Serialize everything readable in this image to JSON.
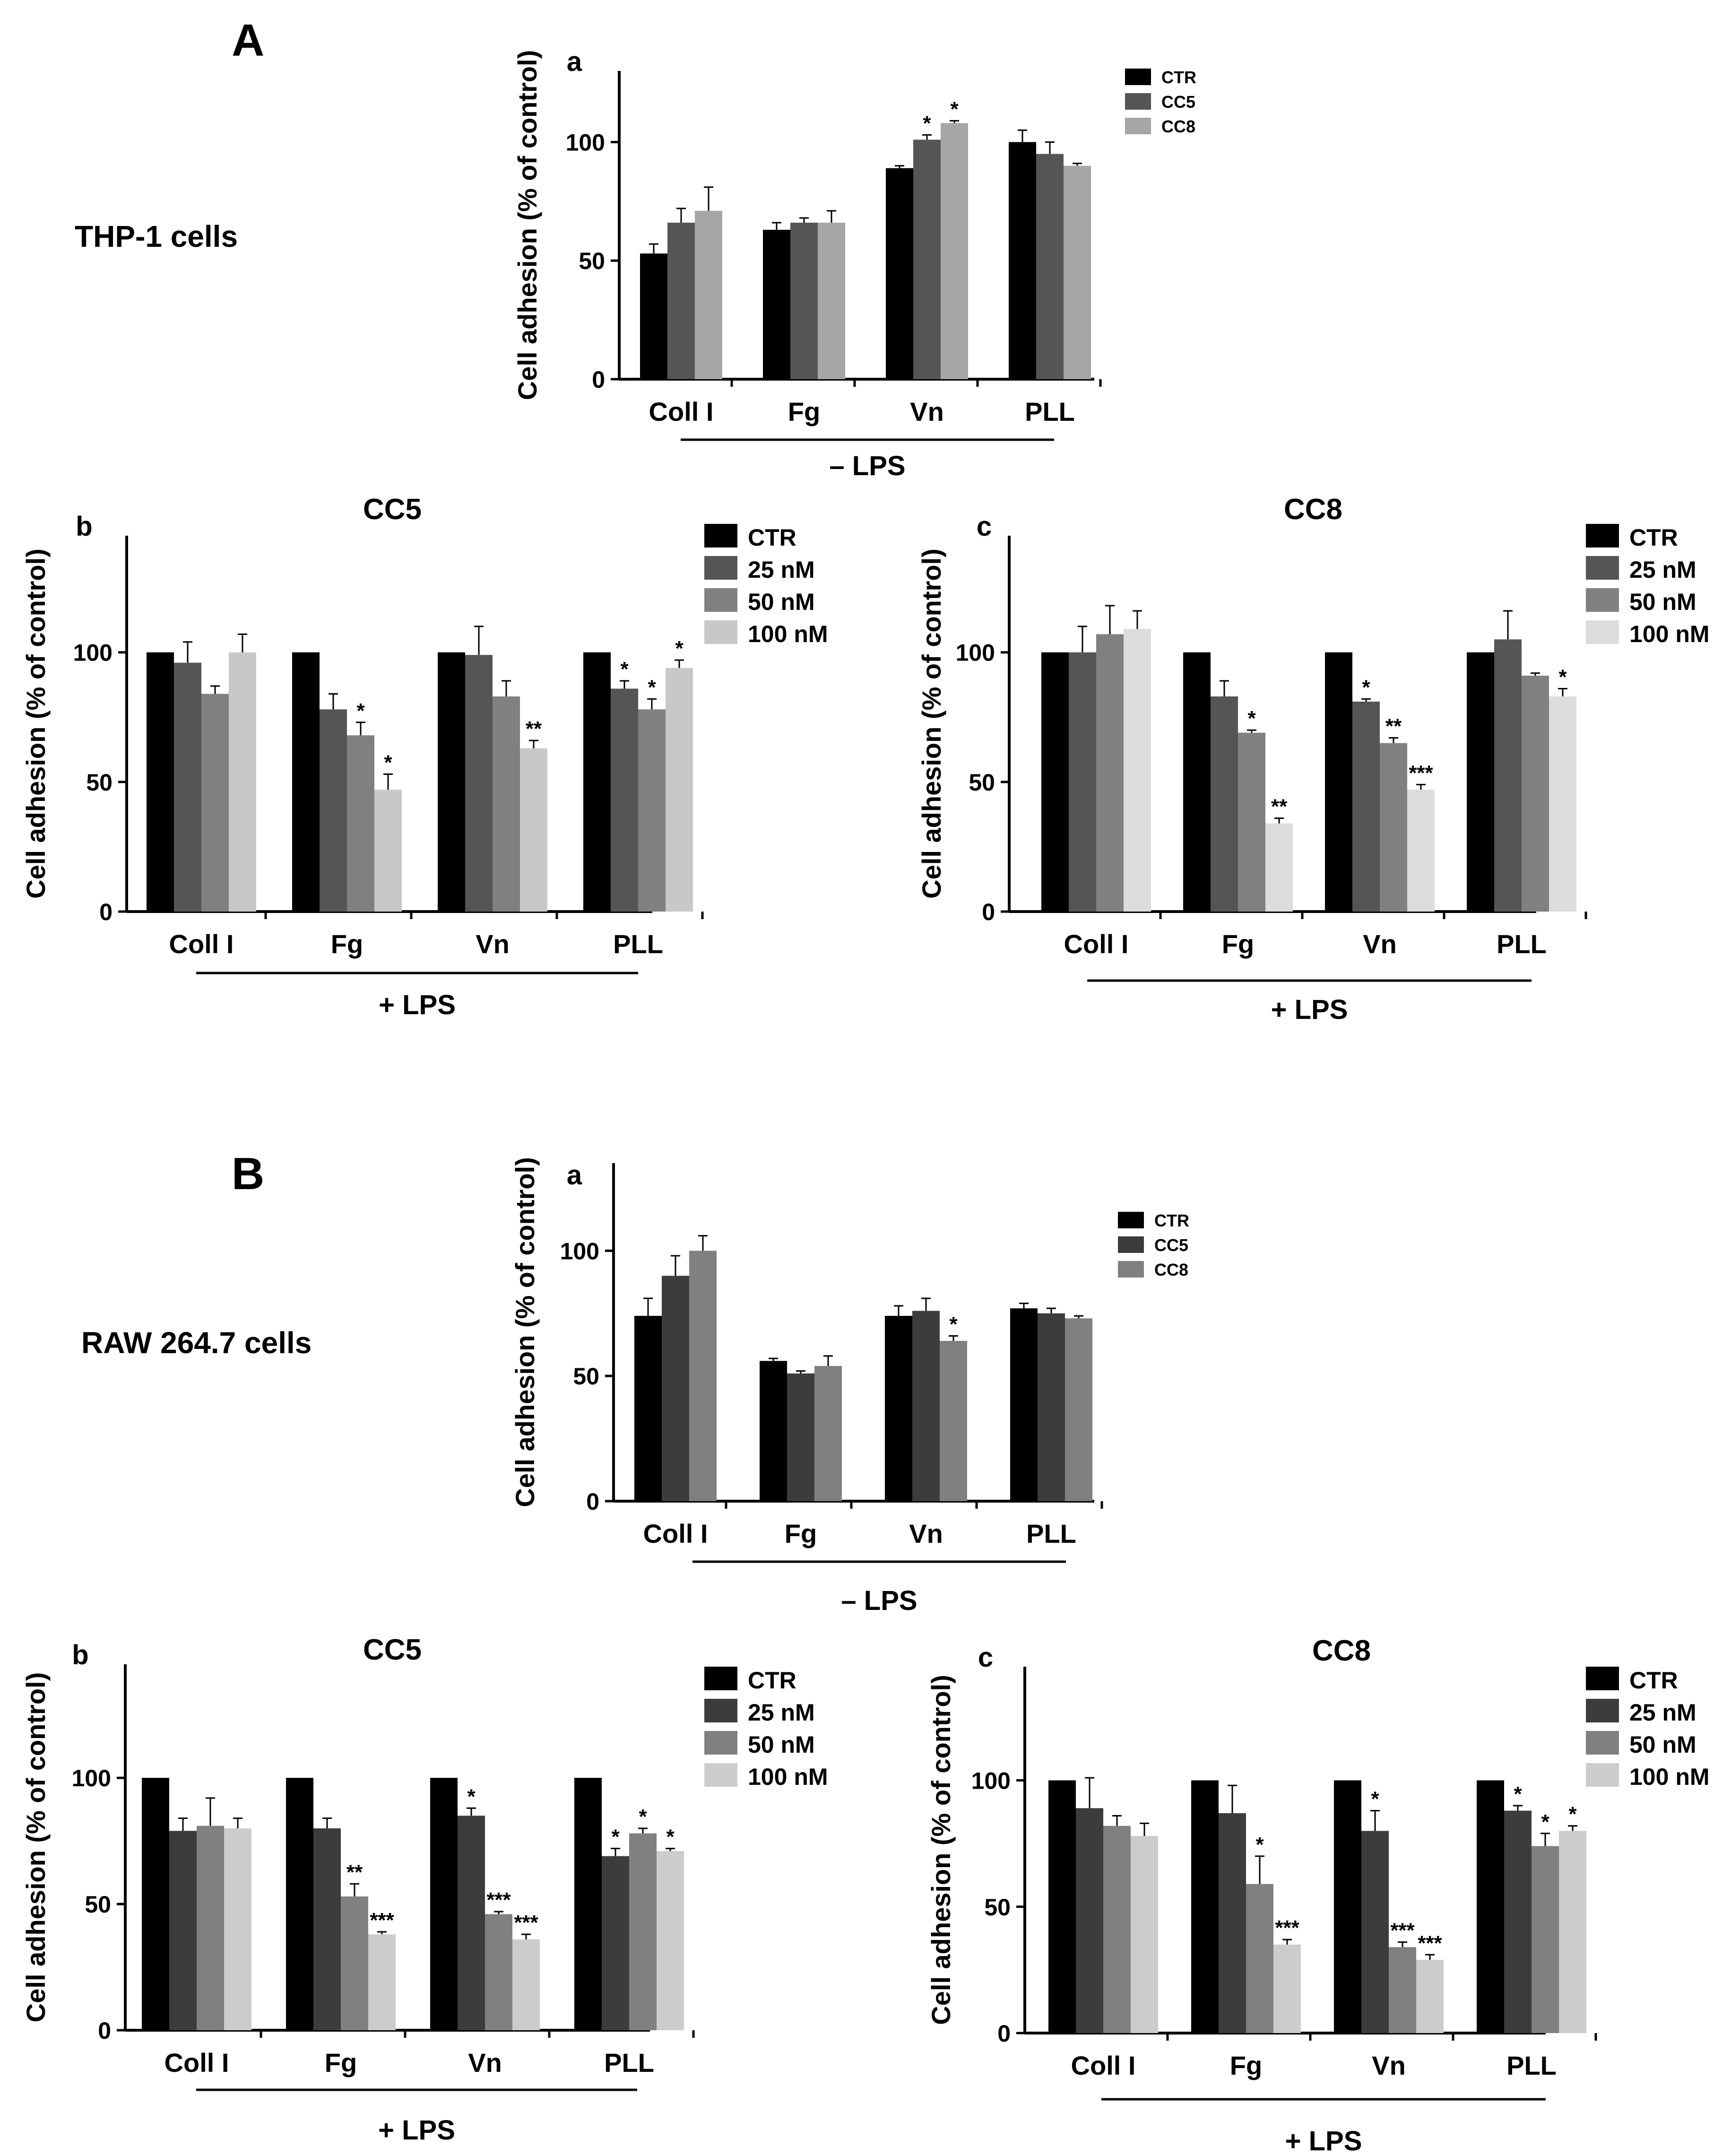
{
  "figure": {
    "section_a_label": "A",
    "section_b_label": "B",
    "section_a_cell_line": "THP-1 cells",
    "section_b_cell_line": "RAW 264.7 cells"
  },
  "chart_data": [
    {
      "id": "Aa",
      "panel_label": "a",
      "type": "bar",
      "title": "",
      "categories": [
        "Coll I",
        "Fg",
        "Vn",
        "PLL"
      ],
      "series": [
        {
          "name": "CTR",
          "color": "#000000",
          "values": [
            53,
            63,
            89,
            100
          ],
          "errors": [
            4,
            3,
            1,
            5
          ],
          "sig": [
            "",
            "",
            "",
            ""
          ]
        },
        {
          "name": "CC5",
          "color": "#555555",
          "values": [
            66,
            66,
            101,
            95
          ],
          "errors": [
            6,
            2,
            2,
            5
          ],
          "sig": [
            "",
            "",
            "*",
            ""
          ]
        },
        {
          "name": "CC8",
          "color": "#a6a6a6",
          "values": [
            71,
            66,
            108,
            90
          ],
          "errors": [
            10,
            5,
            1,
            1
          ],
          "sig": [
            "",
            "",
            "*",
            ""
          ]
        }
      ],
      "ylabel": "Cell adhesion (% of control)",
      "yticks": [
        0,
        50,
        100
      ],
      "ylim": [
        0,
        130
      ],
      "group_label": "– LPS",
      "legend_position": "top-right",
      "grid": false
    },
    {
      "id": "Ab",
      "panel_label": "b",
      "type": "bar",
      "title": "CC5",
      "categories": [
        "Coll I",
        "Fg",
        "Vn",
        "PLL"
      ],
      "series": [
        {
          "name": "CTR",
          "color": "#000000",
          "values": [
            100,
            100,
            100,
            100
          ],
          "errors": [
            0,
            0,
            0,
            0
          ],
          "sig": [
            "",
            "",
            "",
            ""
          ]
        },
        {
          "name": "25 nM",
          "color": "#555555",
          "values": [
            96,
            78,
            99,
            86
          ],
          "errors": [
            8,
            6,
            11,
            3
          ],
          "sig": [
            "",
            "",
            "",
            "*"
          ]
        },
        {
          "name": "50 nM",
          "color": "#808080",
          "values": [
            84,
            68,
            83,
            78
          ],
          "errors": [
            3,
            5,
            6,
            4
          ],
          "sig": [
            "",
            "*",
            "",
            "*"
          ]
        },
        {
          "name": "100 nM",
          "color": "#c8c8c8",
          "values": [
            100,
            47,
            63,
            94
          ],
          "errors": [
            7,
            6,
            3,
            3
          ],
          "sig": [
            "",
            "*",
            "**",
            "*"
          ]
        }
      ],
      "ylabel": "Cell adhesion (% of control)",
      "yticks": [
        0,
        50,
        100
      ],
      "ylim": [
        0,
        145
      ],
      "group_label": "+ LPS",
      "legend_position": "top-right",
      "grid": false
    },
    {
      "id": "Ac",
      "panel_label": "c",
      "type": "bar",
      "title": "CC8",
      "categories": [
        "Coll I",
        "Fg",
        "Vn",
        "PLL"
      ],
      "series": [
        {
          "name": "CTR",
          "color": "#000000",
          "values": [
            100,
            100,
            100,
            100
          ],
          "errors": [
            0,
            0,
            0,
            0
          ],
          "sig": [
            "",
            "",
            "",
            ""
          ]
        },
        {
          "name": "25 nM",
          "color": "#555555",
          "values": [
            100,
            83,
            81,
            105
          ],
          "errors": [
            10,
            6,
            1,
            11
          ],
          "sig": [
            "",
            "",
            "*",
            ""
          ]
        },
        {
          "name": "50 nM",
          "color": "#808080",
          "values": [
            107,
            69,
            65,
            91
          ],
          "errors": [
            11,
            1,
            2,
            1
          ],
          "sig": [
            "",
            "*",
            "**",
            ""
          ]
        },
        {
          "name": "100 nM",
          "color": "#dcdcdc",
          "values": [
            109,
            34,
            47,
            83
          ],
          "errors": [
            7,
            2,
            2,
            3
          ],
          "sig": [
            "",
            "**",
            "***",
            "*"
          ]
        }
      ],
      "ylabel": "Cell adhesion (% of control)",
      "yticks": [
        0,
        50,
        100
      ],
      "ylim": [
        0,
        145
      ],
      "group_label": "+ LPS",
      "legend_position": "top-right",
      "grid": false
    },
    {
      "id": "Ba",
      "panel_label": "a",
      "type": "bar",
      "title": "",
      "categories": [
        "Coll I",
        "Fg",
        "Vn",
        "PLL"
      ],
      "series": [
        {
          "name": "CTR",
          "color": "#000000",
          "values": [
            74,
            56,
            74,
            77
          ],
          "errors": [
            7,
            1,
            4,
            2
          ],
          "sig": [
            "",
            "",
            "",
            ""
          ]
        },
        {
          "name": "CC5",
          "color": "#3c3c3c",
          "values": [
            90,
            51,
            76,
            75
          ],
          "errors": [
            8,
            1,
            5,
            2
          ],
          "sig": [
            "",
            "",
            "",
            ""
          ]
        },
        {
          "name": "CC8",
          "color": "#808080",
          "values": [
            100,
            54,
            64,
            73
          ],
          "errors": [
            6,
            4,
            2,
            1
          ],
          "sig": [
            "",
            "",
            "*",
            ""
          ]
        }
      ],
      "ylabel": "Cell adhesion (% of control)",
      "yticks": [
        0,
        50,
        100
      ],
      "ylim": [
        0,
        135
      ],
      "group_label": "– LPS",
      "legend_position": "top-right",
      "grid": false
    },
    {
      "id": "Bb",
      "panel_label": "b",
      "type": "bar",
      "title": "CC5",
      "categories": [
        "Coll I",
        "Fg",
        "Vn",
        "PLL"
      ],
      "series": [
        {
          "name": "CTR",
          "color": "#000000",
          "values": [
            100,
            100,
            100,
            100
          ],
          "errors": [
            0,
            0,
            0,
            0
          ],
          "sig": [
            "",
            "",
            "",
            ""
          ]
        },
        {
          "name": "25 nM",
          "color": "#3c3c3c",
          "values": [
            79,
            80,
            85,
            69
          ],
          "errors": [
            5,
            4,
            3,
            3
          ],
          "sig": [
            "",
            "",
            "*",
            "*"
          ]
        },
        {
          "name": "50 nM",
          "color": "#808080",
          "values": [
            81,
            53,
            46,
            78
          ],
          "errors": [
            11,
            5,
            1,
            2
          ],
          "sig": [
            "",
            "**",
            "***",
            "*"
          ]
        },
        {
          "name": "100 nM",
          "color": "#cccccc",
          "values": [
            80,
            38,
            36,
            71
          ],
          "errors": [
            4,
            1,
            2,
            1
          ],
          "sig": [
            "",
            "***",
            "***",
            "*"
          ]
        }
      ],
      "ylabel": "Cell adhesion (% of control)",
      "yticks": [
        0,
        50,
        100
      ],
      "ylim": [
        0,
        145
      ],
      "group_label": "+ LPS",
      "legend_position": "top-right",
      "grid": false
    },
    {
      "id": "Bc",
      "panel_label": "c",
      "type": "bar",
      "title": "CC8",
      "categories": [
        "Coll I",
        "Fg",
        "Vn",
        "PLL"
      ],
      "series": [
        {
          "name": "CTR",
          "color": "#000000",
          "values": [
            100,
            100,
            100,
            100
          ],
          "errors": [
            0,
            0,
            0,
            0
          ],
          "sig": [
            "",
            "",
            "",
            ""
          ]
        },
        {
          "name": "25 nM",
          "color": "#3c3c3c",
          "values": [
            89,
            87,
            80,
            88
          ],
          "errors": [
            12,
            11,
            8,
            2
          ],
          "sig": [
            "",
            "",
            "*",
            "*"
          ]
        },
        {
          "name": "50 nM",
          "color": "#808080",
          "values": [
            82,
            59,
            34,
            74
          ],
          "errors": [
            4,
            11,
            2,
            5
          ],
          "sig": [
            "",
            "*",
            "***",
            "*"
          ]
        },
        {
          "name": "100 nM",
          "color": "#cccccc",
          "values": [
            78,
            35,
            29,
            80
          ],
          "errors": [
            5,
            2,
            2,
            2
          ],
          "sig": [
            "",
            "***",
            "***",
            "*"
          ]
        }
      ],
      "ylabel": "Cell adhesion (% of control)",
      "yticks": [
        0,
        50,
        100
      ],
      "ylim": [
        0,
        145
      ],
      "group_label": "+ LPS",
      "legend_position": "top-right",
      "grid": false
    }
  ]
}
